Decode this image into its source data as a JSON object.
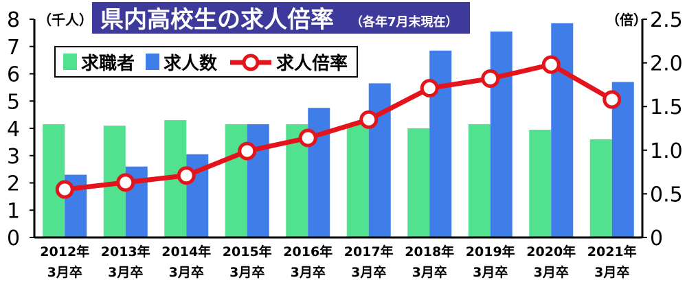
{
  "chart_data": {
    "type": "bar+line",
    "title": "県内高校生の求人倍率",
    "subtitle": "（各年7月末現在）",
    "y_left_unit": "（千人）",
    "y_right_unit": "（倍）",
    "categories": [
      [
        "2012年",
        "3月卒"
      ],
      [
        "2013年",
        "3月卒"
      ],
      [
        "2014年",
        "3月卒"
      ],
      [
        "2015年",
        "3月卒"
      ],
      [
        "2016年",
        "3月卒"
      ],
      [
        "2017年",
        "3月卒"
      ],
      [
        "2018年",
        "3月卒"
      ],
      [
        "2019年",
        "3月卒"
      ],
      [
        "2020年",
        "3月卒"
      ],
      [
        "2021年",
        "3月卒"
      ]
    ],
    "y_left_ticks": [
      "0",
      "1",
      "2",
      "3",
      "4",
      "5",
      "6",
      "7",
      "8"
    ],
    "y_right_ticks": [
      "0",
      "0.5",
      "1.0",
      "1.5",
      "2.0",
      "2.5"
    ],
    "ylim_left": [
      0,
      8
    ],
    "ylim_right": [
      0,
      2.5
    ],
    "series": [
      {
        "name": "求職者",
        "kind": "bar",
        "axis": "left",
        "color": "#52e18e",
        "values": [
          4.15,
          4.1,
          4.3,
          4.15,
          4.15,
          4.15,
          4.0,
          4.15,
          3.95,
          3.6
        ]
      },
      {
        "name": "求人数",
        "kind": "bar",
        "axis": "left",
        "color": "#3f7ee8",
        "values": [
          2.3,
          2.6,
          3.05,
          4.15,
          4.75,
          5.65,
          6.85,
          7.55,
          7.85,
          5.7
        ]
      },
      {
        "name": "求人倍率",
        "kind": "line",
        "axis": "right",
        "color": "#e3141b",
        "values": [
          0.55,
          0.63,
          0.71,
          0.99,
          1.14,
          1.35,
          1.71,
          1.82,
          1.98,
          1.58
        ]
      }
    ],
    "legend_position": "top-left",
    "grid": false,
    "colors": {
      "title_bg": "#3d3a9c",
      "title_text": "#ffffff",
      "axis": "#000000",
      "line_marker_fill": "#ffffff"
    }
  }
}
